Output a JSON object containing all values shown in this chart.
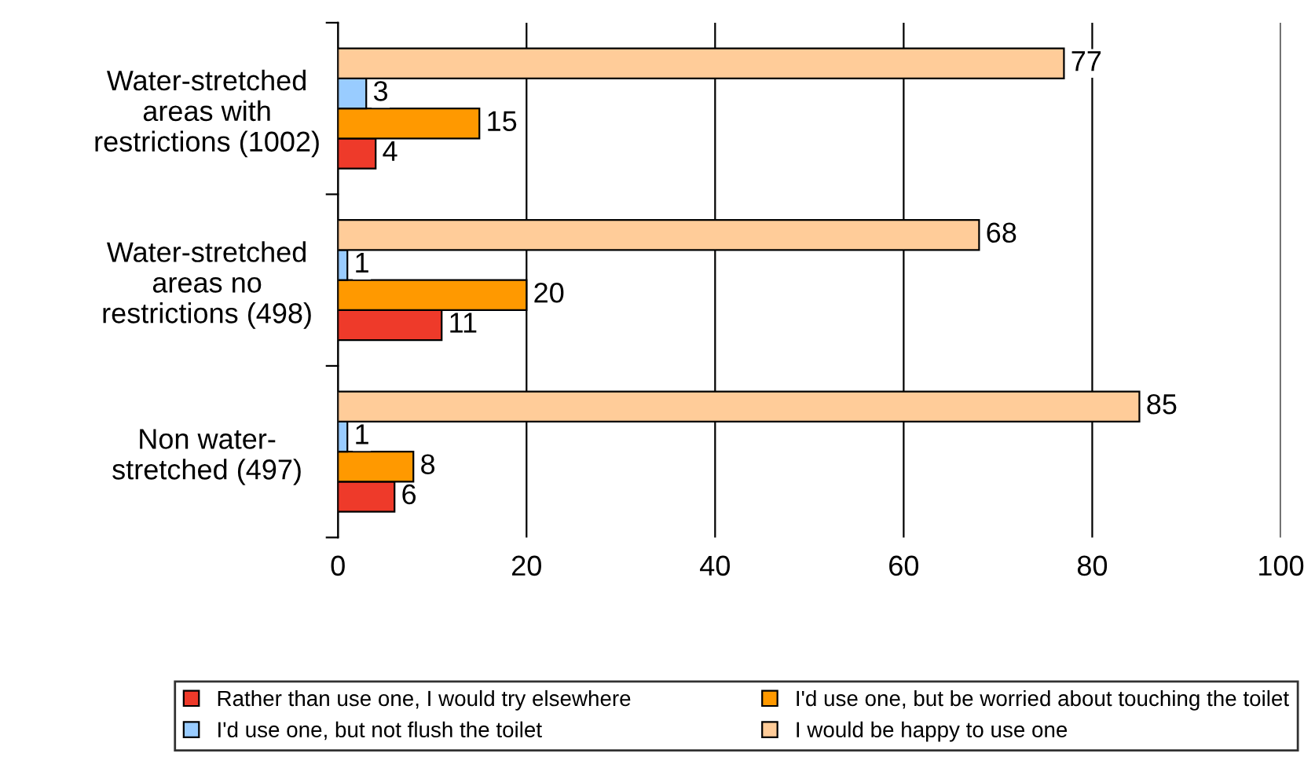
{
  "chart_data": {
    "type": "bar",
    "orientation": "horizontal",
    "categories": [
      "Water-stretched\nareas with\nrestrictions (1002)",
      "Water-stretched\nareas no\nrestrictions (498)",
      "Non water-\nstretched (497)"
    ],
    "series": [
      {
        "name": "Rather than use one, I would try elsewhere",
        "color": "#ee3a2a",
        "values": [
          4,
          11,
          6
        ]
      },
      {
        "name": "I'd use one, but be worried about touching the toilet",
        "color": "#ff9900",
        "values": [
          15,
          20,
          8
        ]
      },
      {
        "name": "I'd use one, but not flush the toilet",
        "color": "#99ccff",
        "values": [
          3,
          1,
          1
        ]
      },
      {
        "name": "I would be happy to use one",
        "color": "#ffcc99",
        "values": [
          77,
          68,
          85
        ]
      }
    ],
    "xlim": [
      0,
      100
    ],
    "xticks": [
      0,
      20,
      40,
      60,
      80,
      100
    ],
    "grid": "x",
    "legend": "bottom",
    "data_labels": true
  }
}
